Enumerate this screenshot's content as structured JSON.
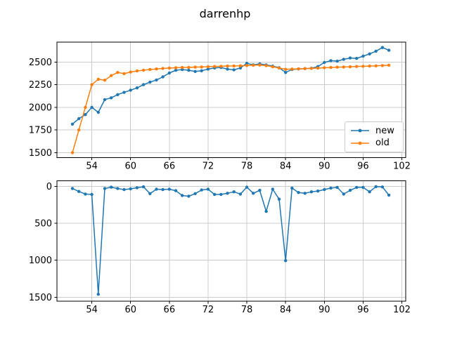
{
  "title": "darrenhp",
  "colors": {
    "new": "#1f77b4",
    "old": "#ff7f0e",
    "grid": "#cccccc",
    "axis": "#000000",
    "background": "#ffffff"
  },
  "legend": {
    "position": "center right",
    "items": [
      {
        "label": "new",
        "color": "#1f77b4"
      },
      {
        "label": "old",
        "color": "#ff7f0e"
      }
    ]
  },
  "chart_data": [
    {
      "type": "line",
      "title": "darrenhp",
      "xlabel": "",
      "ylabel": "",
      "grid": true,
      "legend_position": "center right",
      "x_ticks": [
        54,
        60,
        66,
        72,
        78,
        84,
        90,
        96,
        102
      ],
      "y_ticks": [
        1500,
        1750,
        2000,
        2250,
        2500
      ],
      "xlim": [
        48.6,
        102.6
      ],
      "ylim": [
        1445,
        2720
      ],
      "y_inverted": false,
      "x": [
        51,
        52,
        53,
        54,
        55,
        56,
        57,
        58,
        59,
        60,
        61,
        62,
        63,
        64,
        65,
        66,
        67,
        68,
        69,
        70,
        71,
        72,
        73,
        74,
        75,
        76,
        77,
        78,
        79,
        80,
        81,
        82,
        83,
        84,
        85,
        86,
        87,
        88,
        89,
        90,
        91,
        92,
        93,
        94,
        95,
        96,
        97,
        98,
        99,
        100
      ],
      "series": [
        {
          "name": "new",
          "color": "#1f77b4",
          "marker": "point",
          "values": [
            1815,
            1875,
            1920,
            2000,
            1945,
            2085,
            2105,
            2140,
            2165,
            2190,
            2215,
            2250,
            2278,
            2302,
            2336,
            2379,
            2409,
            2417,
            2409,
            2396,
            2404,
            2422,
            2435,
            2440,
            2422,
            2414,
            2435,
            2486,
            2470,
            2480,
            2468,
            2455,
            2438,
            2385,
            2418,
            2424,
            2428,
            2432,
            2450,
            2495,
            2515,
            2510,
            2530,
            2545,
            2540,
            2565,
            2590,
            2620,
            2660,
            2630
          ]
        },
        {
          "name": "old",
          "color": "#ff7f0e",
          "marker": "point",
          "values": [
            1500,
            1750,
            2000,
            2250,
            2310,
            2300,
            2350,
            2385,
            2372,
            2390,
            2402,
            2410,
            2418,
            2424,
            2429,
            2434,
            2437,
            2440,
            2441,
            2444,
            2446,
            2449,
            2451,
            2453,
            2456,
            2457,
            2459,
            2462,
            2465,
            2467,
            2460,
            2448,
            2434,
            2420,
            2422,
            2425,
            2428,
            2430,
            2433,
            2437,
            2440,
            2443,
            2446,
            2448,
            2451,
            2453,
            2456,
            2458,
            2461,
            2465
          ]
        }
      ]
    },
    {
      "type": "line",
      "title": "",
      "xlabel": "",
      "ylabel": "",
      "grid": true,
      "legend_position": null,
      "x_ticks": [
        54,
        60,
        66,
        72,
        78,
        84,
        90,
        96,
        102
      ],
      "y_ticks": [
        0,
        500,
        1000,
        1500
      ],
      "xlim": [
        48.6,
        102.6
      ],
      "ylim": [
        -74,
        1554
      ],
      "y_inverted": true,
      "x": [
        51,
        52,
        53,
        54,
        55,
        56,
        57,
        58,
        59,
        60,
        61,
        62,
        63,
        64,
        65,
        66,
        67,
        68,
        69,
        70,
        71,
        72,
        73,
        74,
        75,
        76,
        77,
        78,
        79,
        80,
        81,
        82,
        83,
        84,
        85,
        86,
        87,
        88,
        89,
        90,
        91,
        92,
        93,
        94,
        95,
        96,
        97,
        98,
        99,
        100
      ],
      "series": [
        {
          "name": "",
          "color": "#1f77b4",
          "marker": "point",
          "values": [
            30,
            70,
            105,
            110,
            1460,
            30,
            12,
            30,
            45,
            35,
            20,
            8,
            100,
            40,
            45,
            40,
            60,
            125,
            135,
            100,
            50,
            40,
            110,
            110,
            95,
            75,
            105,
            12,
            95,
            55,
            340,
            40,
            175,
            1005,
            25,
            85,
            95,
            75,
            65,
            45,
            25,
            15,
            105,
            55,
            15,
            15,
            75,
            5,
            10,
            120
          ]
        }
      ]
    }
  ]
}
